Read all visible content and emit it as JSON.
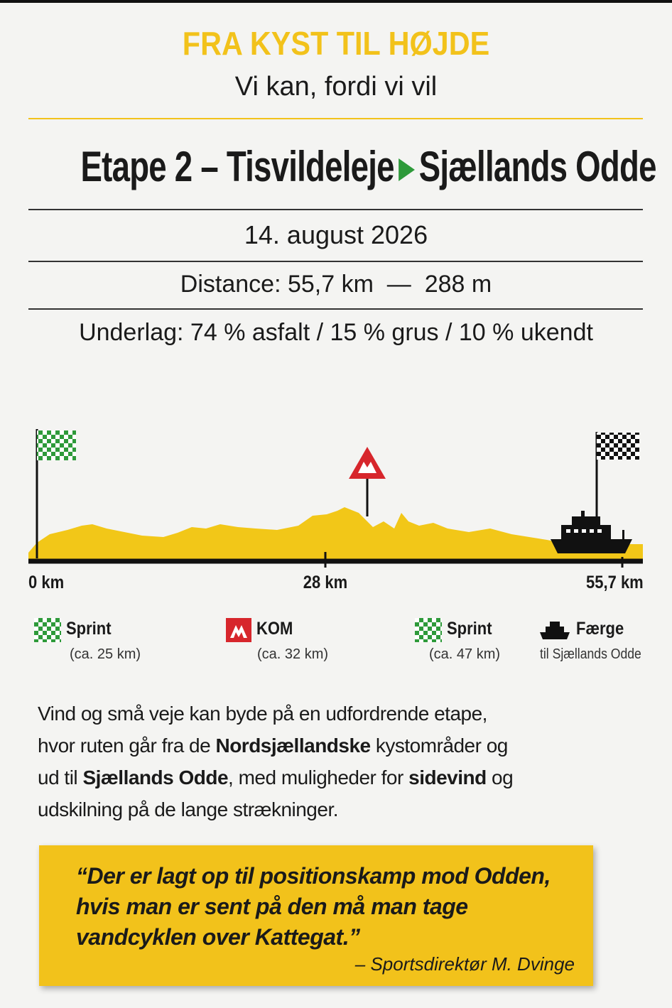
{
  "header": {
    "title": "FRA KYST TIL HØJDE",
    "subtitle": "Vi kan, fordi vi vil"
  },
  "stage": {
    "label": "Etape 2 – Tisvildeleje",
    "destination": "Sjællands Odde",
    "date": "14. august 2026",
    "distance": "Distance: 55,7 km  —  288 m",
    "surface": "Underlag: 74 % asfalt / 15 % grus / 10 % ukendt"
  },
  "profile": {
    "axis_labels": [
      "0 km",
      "28 km",
      "55,7 km"
    ]
  },
  "legend": [
    {
      "label": "Sprint",
      "note": "(ca. 25 km)"
    },
    {
      "label": "KOM",
      "note": "(ca. 32 km)"
    },
    {
      "label": "Sprint",
      "note": "(ca. 47 km)"
    },
    {
      "label": "Færge",
      "note": "til Sjællands Odde"
    }
  ],
  "body": {
    "segments": [
      {
        "text": "Vind og små veje kan byde på en udfordrende etape, hvor ruten går fra de ",
        "bold": false
      },
      {
        "text": "Nordsjællandske",
        "bold": true
      },
      {
        "text": " kystområder og ud til ",
        "bold": false
      },
      {
        "text": "Sjællands Odde",
        "bold": true
      },
      {
        "text": ", med muligheder for ",
        "bold": false
      },
      {
        "text": "sidevind",
        "bold": true
      },
      {
        "text": " og udskilning på de lange strækninger.",
        "bold": false
      }
    ]
  },
  "quote": {
    "text": "“Der er lagt op til positionskamp mod Odden, hvis man er sent på den må man tage vandcyklen over Kattegat.”",
    "attribution": "– Sportsdirektør M. Dvinge"
  }
}
